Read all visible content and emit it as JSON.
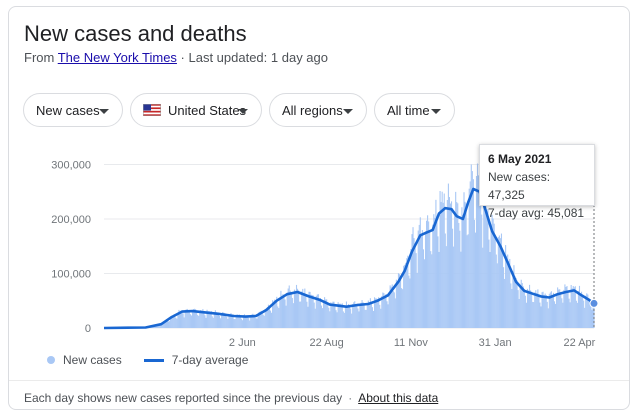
{
  "header": {
    "title": "New cases and deaths",
    "source_prefix": "From ",
    "source_name": "The New York Times",
    "source_suffix": " · Last updated: 1 day ago"
  },
  "filters": {
    "metric": "New cases",
    "country": "United States",
    "region": "All regions",
    "period": "All time"
  },
  "colors": {
    "bars": "#a9c8f5",
    "avg_line": "#1967d2",
    "grid": "#e8eaed"
  },
  "tooltip": {
    "date": "6 May 2021",
    "new_cases_label": "New cases: 47,325",
    "avg_label": "7-day avg: 45,081"
  },
  "legend": {
    "bars_label": "New cases",
    "line_label": "7-day average"
  },
  "footer": {
    "note": "Each day shows new cases reported since the previous day",
    "link": "About this data"
  },
  "chart_data": {
    "type": "bar",
    "x_type": "date",
    "x_range": [
      "2020-01-21",
      "2021-05-06"
    ],
    "xticks": [
      {
        "date": "2020-06-02",
        "label": "2 Jun"
      },
      {
        "date": "2020-08-22",
        "label": "22 Aug"
      },
      {
        "date": "2020-11-11",
        "label": "11 Nov"
      },
      {
        "date": "2021-01-31",
        "label": "31 Jan"
      },
      {
        "date": "2021-04-22",
        "label": "22 Apr"
      }
    ],
    "yticks": [
      {
        "value": 0,
        "label": "0"
      },
      {
        "value": 100000,
        "label": "100,000"
      },
      {
        "value": 200000,
        "label": "200,000"
      },
      {
        "value": 300000,
        "label": "300,000"
      }
    ],
    "ylim": [
      0,
      310000
    ],
    "grid": true,
    "legend_position": "bottom-left",
    "series": [
      {
        "name": "7-day average",
        "type": "line",
        "points": [
          {
            "date": "2020-01-21",
            "value": 0
          },
          {
            "date": "2020-03-01",
            "value": 1000
          },
          {
            "date": "2020-03-16",
            "value": 7000
          },
          {
            "date": "2020-03-26",
            "value": 20000
          },
          {
            "date": "2020-04-05",
            "value": 30000
          },
          {
            "date": "2020-04-15",
            "value": 31000
          },
          {
            "date": "2020-04-25",
            "value": 29000
          },
          {
            "date": "2020-05-10",
            "value": 26000
          },
          {
            "date": "2020-05-25",
            "value": 22000
          },
          {
            "date": "2020-06-05",
            "value": 21000
          },
          {
            "date": "2020-06-15",
            "value": 22000
          },
          {
            "date": "2020-06-25",
            "value": 33000
          },
          {
            "date": "2020-07-05",
            "value": 50000
          },
          {
            "date": "2020-07-15",
            "value": 62000
          },
          {
            "date": "2020-07-25",
            "value": 66000
          },
          {
            "date": "2020-08-05",
            "value": 58000
          },
          {
            "date": "2020-08-15",
            "value": 52000
          },
          {
            "date": "2020-08-25",
            "value": 43000
          },
          {
            "date": "2020-09-10",
            "value": 39000
          },
          {
            "date": "2020-09-20",
            "value": 42000
          },
          {
            "date": "2020-10-01",
            "value": 44000
          },
          {
            "date": "2020-10-10",
            "value": 50000
          },
          {
            "date": "2020-10-20",
            "value": 60000
          },
          {
            "date": "2020-10-30",
            "value": 85000
          },
          {
            "date": "2020-11-05",
            "value": 105000
          },
          {
            "date": "2020-11-12",
            "value": 140000
          },
          {
            "date": "2020-11-20",
            "value": 170000
          },
          {
            "date": "2020-11-26",
            "value": 175000
          },
          {
            "date": "2020-12-02",
            "value": 180000
          },
          {
            "date": "2020-12-08",
            "value": 210000
          },
          {
            "date": "2020-12-14",
            "value": 220000
          },
          {
            "date": "2020-12-20",
            "value": 218000
          },
          {
            "date": "2020-12-25",
            "value": 205000
          },
          {
            "date": "2020-12-31",
            "value": 200000
          },
          {
            "date": "2021-01-05",
            "value": 230000
          },
          {
            "date": "2021-01-10",
            "value": 255000
          },
          {
            "date": "2021-01-16",
            "value": 250000
          },
          {
            "date": "2021-01-22",
            "value": 215000
          },
          {
            "date": "2021-01-28",
            "value": 178000
          },
          {
            "date": "2021-02-05",
            "value": 150000
          },
          {
            "date": "2021-02-12",
            "value": 120000
          },
          {
            "date": "2021-02-20",
            "value": 85000
          },
          {
            "date": "2021-02-28",
            "value": 68000
          },
          {
            "date": "2021-03-08",
            "value": 63000
          },
          {
            "date": "2021-03-16",
            "value": 58000
          },
          {
            "date": "2021-03-24",
            "value": 56000
          },
          {
            "date": "2021-04-01",
            "value": 62000
          },
          {
            "date": "2021-04-09",
            "value": 66000
          },
          {
            "date": "2021-04-17",
            "value": 69000
          },
          {
            "date": "2021-04-24",
            "value": 60000
          },
          {
            "date": "2021-05-01",
            "value": 52000
          },
          {
            "date": "2021-05-06",
            "value": 45081
          }
        ]
      },
      {
        "name": "New cases",
        "type": "bar",
        "peaks": [
          {
            "date": "2020-04-10",
            "value": 35000
          },
          {
            "date": "2020-07-17",
            "value": 78000
          },
          {
            "date": "2020-11-13",
            "value": 185000
          },
          {
            "date": "2020-12-11",
            "value": 250000
          },
          {
            "date": "2021-01-08",
            "value": 300000
          },
          {
            "date": "2021-01-15",
            "value": 280000
          },
          {
            "date": "2021-04-08",
            "value": 80000
          },
          {
            "date": "2021-05-06",
            "value": 47325
          }
        ]
      }
    ]
  }
}
